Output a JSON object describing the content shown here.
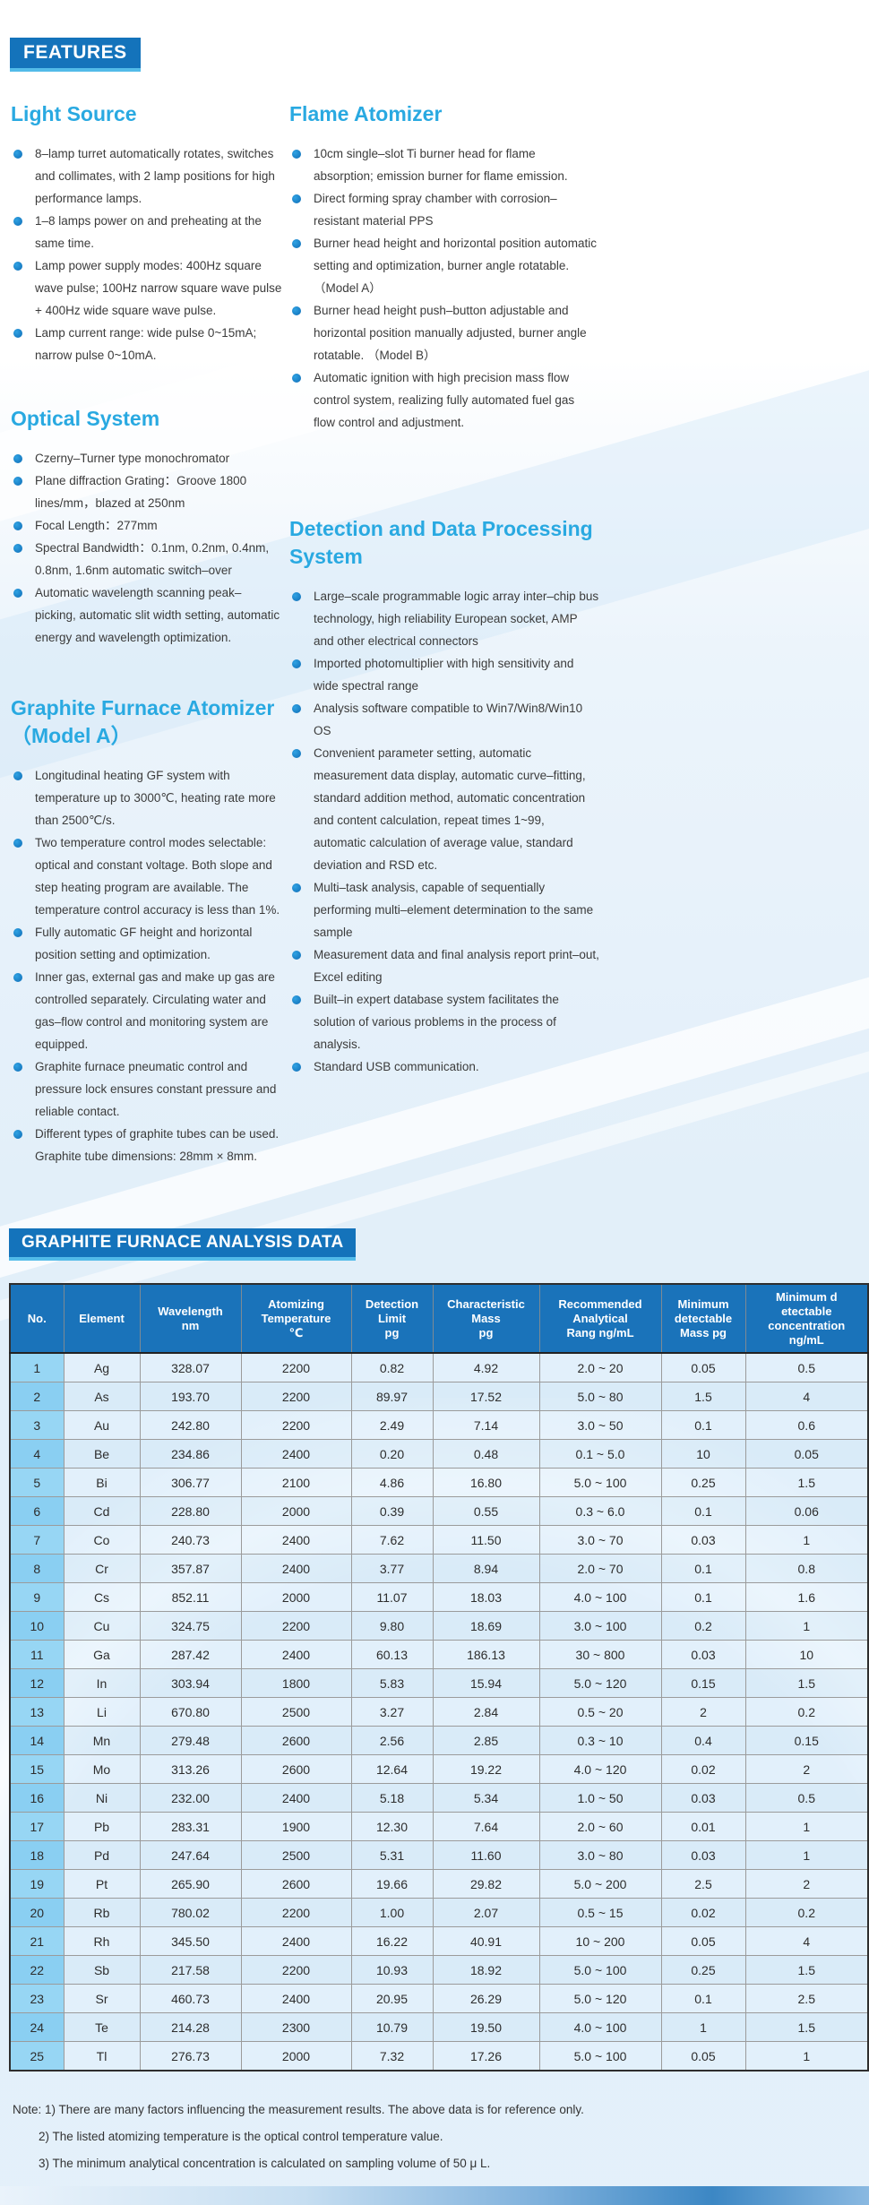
{
  "badges": {
    "features": "FEATURES",
    "table": "GRAPHITE FURNACE ANALYSIS DATA"
  },
  "colors": {
    "badge_bg": "#1473bb",
    "badge_underline": "#52bbe9",
    "heading_blue": "#29a9e1",
    "bullet_blue": "#1b86cf",
    "table_header_bg": "#1a73ba",
    "row_number_bg": "#97d6f4",
    "row_bg": "#e2f1fb",
    "body_text": "#3b3b3b"
  },
  "features": {
    "left": [
      {
        "title": "Light Source",
        "bullets": [
          "8–lamp turret automatically rotates, switches and collimates, with 2 lamp positions for high performance lamps.",
          "1–8 lamps power on and preheating at the same time.",
          "Lamp power supply modes: 400Hz square wave pulse; 100Hz narrow square wave pulse + 400Hz wide square wave pulse.",
          "Lamp current range: wide pulse 0~15mA; narrow pulse 0~10mA."
        ]
      },
      {
        "title": "Optical System",
        "bullets": [
          "Czerny–Turner type monochromator",
          "Plane diffraction Grating：Groove 1800 lines/mm，blazed at 250nm",
          "Focal Length：277mm",
          "Spectral Bandwidth：0.1nm, 0.2nm, 0.4nm, 0.8nm, 1.6nm automatic switch–over",
          "Automatic wavelength scanning peak–picking, automatic slit width setting, automatic energy and wavelength optimization."
        ]
      },
      {
        "title": "Graphite Furnace Atomizer（Model A）",
        "bullets": [
          "Longitudinal heating GF system with temperature up to 3000℃, heating rate more than 2500℃/s.",
          "Two temperature control modes selectable: optical and constant voltage.  Both slope and step heating program are available. The temperature control accuracy is less than 1%.",
          "Fully automatic GF height and horizontal position setting and optimization.",
          "Inner gas, external gas and make up gas are controlled separately. Circulating water and gas–flow control and monitoring system are equipped.",
          "Graphite furnace pneumatic control and pressure lock ensures constant pressure and reliable contact.",
          "Different types of graphite tubes can be used. Graphite tube dimensions: 28mm × 8mm."
        ]
      }
    ],
    "right": [
      {
        "title": "Flame Atomizer",
        "bullets": [
          "10cm single–slot Ti burner head for flame absorption; emission burner for flame emission.",
          "Direct forming spray chamber with corrosion–resistant material PPS",
          "Burner head height and horizontal position automatic setting and optimization, burner angle rotatable. （Model A）",
          "Burner head height push–button adjustable and horizontal position manually adjusted, burner angle rotatable. （Model B）",
          "Automatic ignition with high precision mass flow control system, realizing fully automated fuel gas flow control and adjustment."
        ]
      },
      {
        "title": "Detection and Data Processing System",
        "bullets": [
          "Large–scale programmable logic array inter–chip bus technology, high reliability European socket, AMP and other electrical connectors",
          "Imported photomultiplier with high sensitivity and wide spectral range",
          "Analysis software compatible to Win7/Win8/Win10 OS",
          "Convenient parameter setting, automatic measurement data display, automatic curve–fitting, standard addition method, automatic concentration and content calculation, repeat times 1~99, automatic calculation of average value, standard deviation and RSD etc.",
          "Multi–task analysis, capable of sequentially performing multi–element determination to the same sample",
          "Measurement data and final analysis report print–out, Excel editing",
          "Built–in expert database system facilitates the solution of various problems in the process of analysis.",
          "Standard USB communication."
        ]
      }
    ]
  },
  "table": {
    "headers": [
      "No.",
      "Element",
      "Wavelength\nnm",
      "Atomizing\nTemperature\n℃",
      "Detection\nLimit\npg",
      "Characteristic\nMass\npg",
      "Recommended\nAnalytical\nRang ng/mL",
      "Minimum\ndetectable\nMass pg",
      "Minimum d\netectable\nconcentration\nng/mL"
    ],
    "rows": [
      [
        "1",
        "Ag",
        "328.07",
        "2200",
        "0.82",
        "4.92",
        "2.0 ~ 20",
        "0.05",
        "0.5"
      ],
      [
        "2",
        "As",
        "193.70",
        "2200",
        "89.97",
        "17.52",
        "5.0 ~ 80",
        "1.5",
        "4"
      ],
      [
        "3",
        "Au",
        "242.80",
        "2200",
        "2.49",
        "7.14",
        "3.0 ~ 50",
        "0.1",
        "0.6"
      ],
      [
        "4",
        "Be",
        "234.86",
        "2400",
        "0.20",
        "0.48",
        "0.1 ~ 5.0",
        "10",
        "0.05"
      ],
      [
        "5",
        "Bi",
        "306.77",
        "2100",
        "4.86",
        "16.80",
        "5.0 ~ 100",
        "0.25",
        "1.5"
      ],
      [
        "6",
        "Cd",
        "228.80",
        "2000",
        "0.39",
        "0.55",
        "0.3 ~ 6.0",
        "0.1",
        "0.06"
      ],
      [
        "7",
        "Co",
        "240.73",
        "2400",
        "7.62",
        "11.50",
        "3.0 ~ 70",
        "0.03",
        "1"
      ],
      [
        "8",
        "Cr",
        "357.87",
        "2400",
        "3.77",
        "8.94",
        "2.0 ~ 70",
        "0.1",
        "0.8"
      ],
      [
        "9",
        "Cs",
        "852.11",
        "2000",
        "11.07",
        "18.03",
        "4.0 ~ 100",
        "0.1",
        "1.6"
      ],
      [
        "10",
        "Cu",
        "324.75",
        "2200",
        "9.80",
        "18.69",
        "3.0 ~ 100",
        "0.2",
        "1"
      ],
      [
        "11",
        "Ga",
        "287.42",
        "2400",
        "60.13",
        "186.13",
        "30 ~ 800",
        "0.03",
        "10"
      ],
      [
        "12",
        "In",
        "303.94",
        "1800",
        "5.83",
        "15.94",
        "5.0 ~ 120",
        "0.15",
        "1.5"
      ],
      [
        "13",
        "Li",
        "670.80",
        "2500",
        "3.27",
        "2.84",
        "0.5 ~ 20",
        "2",
        "0.2"
      ],
      [
        "14",
        "Mn",
        "279.48",
        "2600",
        "2.56",
        "2.85",
        "0.3 ~ 10",
        "0.4",
        "0.15"
      ],
      [
        "15",
        "Mo",
        "313.26",
        "2600",
        "12.64",
        "19.22",
        "4.0 ~ 120",
        "0.02",
        "2"
      ],
      [
        "16",
        "Ni",
        "232.00",
        "2400",
        "5.18",
        "5.34",
        "1.0 ~ 50",
        "0.03",
        "0.5"
      ],
      [
        "17",
        "Pb",
        "283.31",
        "1900",
        "12.30",
        "7.64",
        "2.0 ~ 60",
        "0.01",
        "1"
      ],
      [
        "18",
        "Pd",
        "247.64",
        "2500",
        "5.31",
        "11.60",
        "3.0 ~ 80",
        "0.03",
        "1"
      ],
      [
        "19",
        "Pt",
        "265.90",
        "2600",
        "19.66",
        "29.82",
        "5.0 ~ 200",
        "2.5",
        "2"
      ],
      [
        "20",
        "Rb",
        "780.02",
        "2200",
        "1.00",
        "2.07",
        "0.5 ~ 15",
        "0.02",
        "0.2"
      ],
      [
        "21",
        "Rh",
        "345.50",
        "2400",
        "16.22",
        "40.91",
        "10 ~ 200",
        "0.05",
        "4"
      ],
      [
        "22",
        "Sb",
        "217.58",
        "2200",
        "10.93",
        "18.92",
        "5.0 ~ 100",
        "0.25",
        "1.5"
      ],
      [
        "23",
        "Sr",
        "460.73",
        "2400",
        "20.95",
        "26.29",
        "5.0 ~ 120",
        "0.1",
        "2.5"
      ],
      [
        "24",
        "Te",
        "214.28",
        "2300",
        "10.79",
        "19.50",
        "4.0 ~ 100",
        "1",
        "1.5"
      ],
      [
        "25",
        "Tl",
        "276.73",
        "2000",
        "7.32",
        "17.26",
        "5.0 ~ 100",
        "0.05",
        "1"
      ]
    ]
  },
  "notes": [
    "Note: 1) There are many factors influencing the measurement results. The above data is for reference only.",
    "2) The listed atomizing temperature is the optical control temperature value.",
    "3) The minimum analytical concentration is calculated on sampling volume of 50 μ L."
  ]
}
